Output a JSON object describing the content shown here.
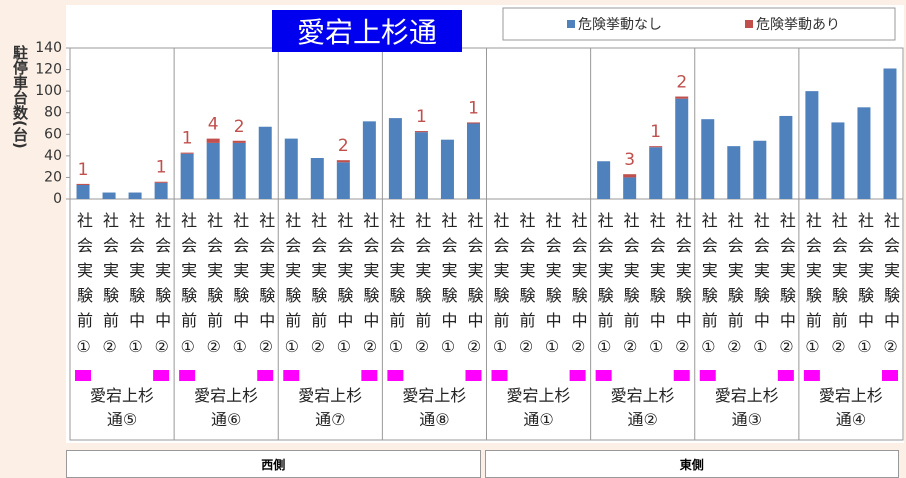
{
  "chart_data": {
    "type": "stacked_bar",
    "title": "愛宕上杉通",
    "y_axis_label": "駐停車台数(台)",
    "ylim": [
      0,
      140
    ],
    "yticks": [
      0,
      20,
      40,
      60,
      80,
      100,
      120,
      140
    ],
    "groups": [
      "愛宕上杉通⑤",
      "愛宕上杉通⑥",
      "愛宕上杉通⑦",
      "愛宕上杉通⑧",
      "愛宕上杉通①",
      "愛宕上杉通②",
      "愛宕上杉通③",
      "愛宕上杉通④"
    ],
    "sides": [
      "西側",
      "東側"
    ],
    "categories": [
      "社会実験前①",
      "社会実験前②",
      "社会実験中①",
      "社会実験中②",
      "社会実験前①",
      "社会実験前②",
      "社会実験中①",
      "社会実験中②",
      "社会実験前①",
      "社会実験前②",
      "社会実験中①",
      "社会実験中②",
      "社会実験前①",
      "社会実験前②",
      "社会実験中①",
      "社会実験中②",
      "社会実験前①",
      "社会実験前②",
      "社会実験中①",
      "社会実験中②",
      "社会実験前①",
      "社会実験前②",
      "社会実験中①",
      "社会実験中②",
      "社会実験前①",
      "社会実験前②",
      "社会実験中①",
      "社会実験中②",
      "社会実験前①",
      "社会実験前②",
      "社会実験中①",
      "社会実験中②"
    ],
    "series": [
      {
        "name": "危険挙動なし",
        "color": "#4f81bd",
        "values": [
          13,
          6,
          6,
          15,
          42,
          52,
          52,
          67,
          56,
          38,
          34,
          72,
          75,
          62,
          55,
          70,
          0,
          0,
          0,
          0,
          35,
          20,
          48,
          93,
          74,
          49,
          54,
          77,
          100,
          71,
          85,
          121
        ]
      },
      {
        "name": "危険挙動あり",
        "color": "#c0504d",
        "values": [
          1,
          null,
          null,
          1,
          1,
          4,
          2,
          null,
          null,
          null,
          2,
          null,
          null,
          1,
          null,
          1,
          null,
          null,
          null,
          null,
          null,
          3,
          1,
          2,
          null,
          null,
          null,
          null,
          null,
          null,
          null,
          null
        ]
      }
    ]
  }
}
